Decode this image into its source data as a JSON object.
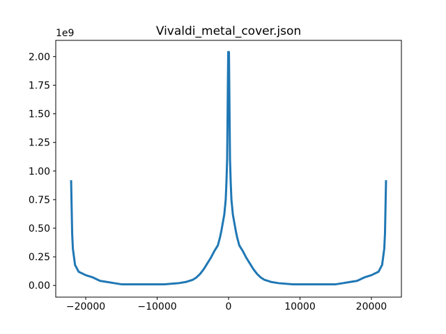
{
  "chart_data": {
    "type": "line",
    "title": "Vivaldi_metal_cover.json",
    "xlabel": "",
    "ylabel": "",
    "y_offset_label": "1e9",
    "xlim": [
      -24200,
      24200
    ],
    "ylim": [
      -0.102,
      2.142
    ],
    "x_ticks": [
      -20000,
      -10000,
      0,
      10000,
      20000
    ],
    "x_tick_labels": [
      "−20000",
      "−10000",
      "0",
      "10000",
      "20000"
    ],
    "y_ticks": [
      0.0,
      0.25,
      0.5,
      0.75,
      1.0,
      1.25,
      1.5,
      1.75,
      2.0
    ],
    "y_tick_labels": [
      "0.00",
      "0.25",
      "0.50",
      "0.75",
      "1.00",
      "1.25",
      "1.50",
      "1.75",
      "2.00"
    ],
    "grid": false,
    "line_color": "#1f77b4",
    "series": [
      {
        "x": [
          -22050,
          -21900,
          -21800,
          -21500,
          -21000,
          -20000,
          -19000,
          -18000,
          -17000,
          -16000,
          -15000,
          -13000,
          -11000,
          -9000,
          -7000,
          -6000,
          -5000,
          -4500,
          -4000,
          -3500,
          -3000,
          -2500,
          -2000,
          -1500,
          -1200,
          -1000,
          -800,
          -600,
          -400,
          -300,
          -200,
          -150,
          -100,
          -50,
          -20,
          0,
          20,
          50,
          100,
          150,
          200,
          300,
          400,
          600,
          800,
          1000,
          1200,
          1500,
          2000,
          2500,
          3000,
          3500,
          4000,
          4500,
          5000,
          6000,
          7000,
          9000,
          11000,
          13000,
          15000,
          16000,
          17000,
          18000,
          19000,
          20000,
          21000,
          21500,
          21800,
          21900,
          22050
        ],
        "y": [
          0.92,
          0.45,
          0.32,
          0.18,
          0.12,
          0.09,
          0.07,
          0.04,
          0.03,
          0.02,
          0.01,
          0.01,
          0.01,
          0.01,
          0.02,
          0.03,
          0.05,
          0.07,
          0.1,
          0.14,
          0.19,
          0.24,
          0.3,
          0.35,
          0.42,
          0.48,
          0.55,
          0.62,
          0.75,
          0.9,
          1.1,
          1.4,
          1.75,
          2.04,
          2.04,
          2.04,
          2.04,
          2.04,
          1.75,
          1.4,
          1.1,
          0.9,
          0.75,
          0.62,
          0.55,
          0.48,
          0.42,
          0.35,
          0.3,
          0.24,
          0.19,
          0.14,
          0.1,
          0.07,
          0.05,
          0.03,
          0.02,
          0.01,
          0.01,
          0.01,
          0.01,
          0.02,
          0.03,
          0.04,
          0.07,
          0.09,
          0.12,
          0.18,
          0.32,
          0.45,
          0.92
        ]
      }
    ]
  }
}
